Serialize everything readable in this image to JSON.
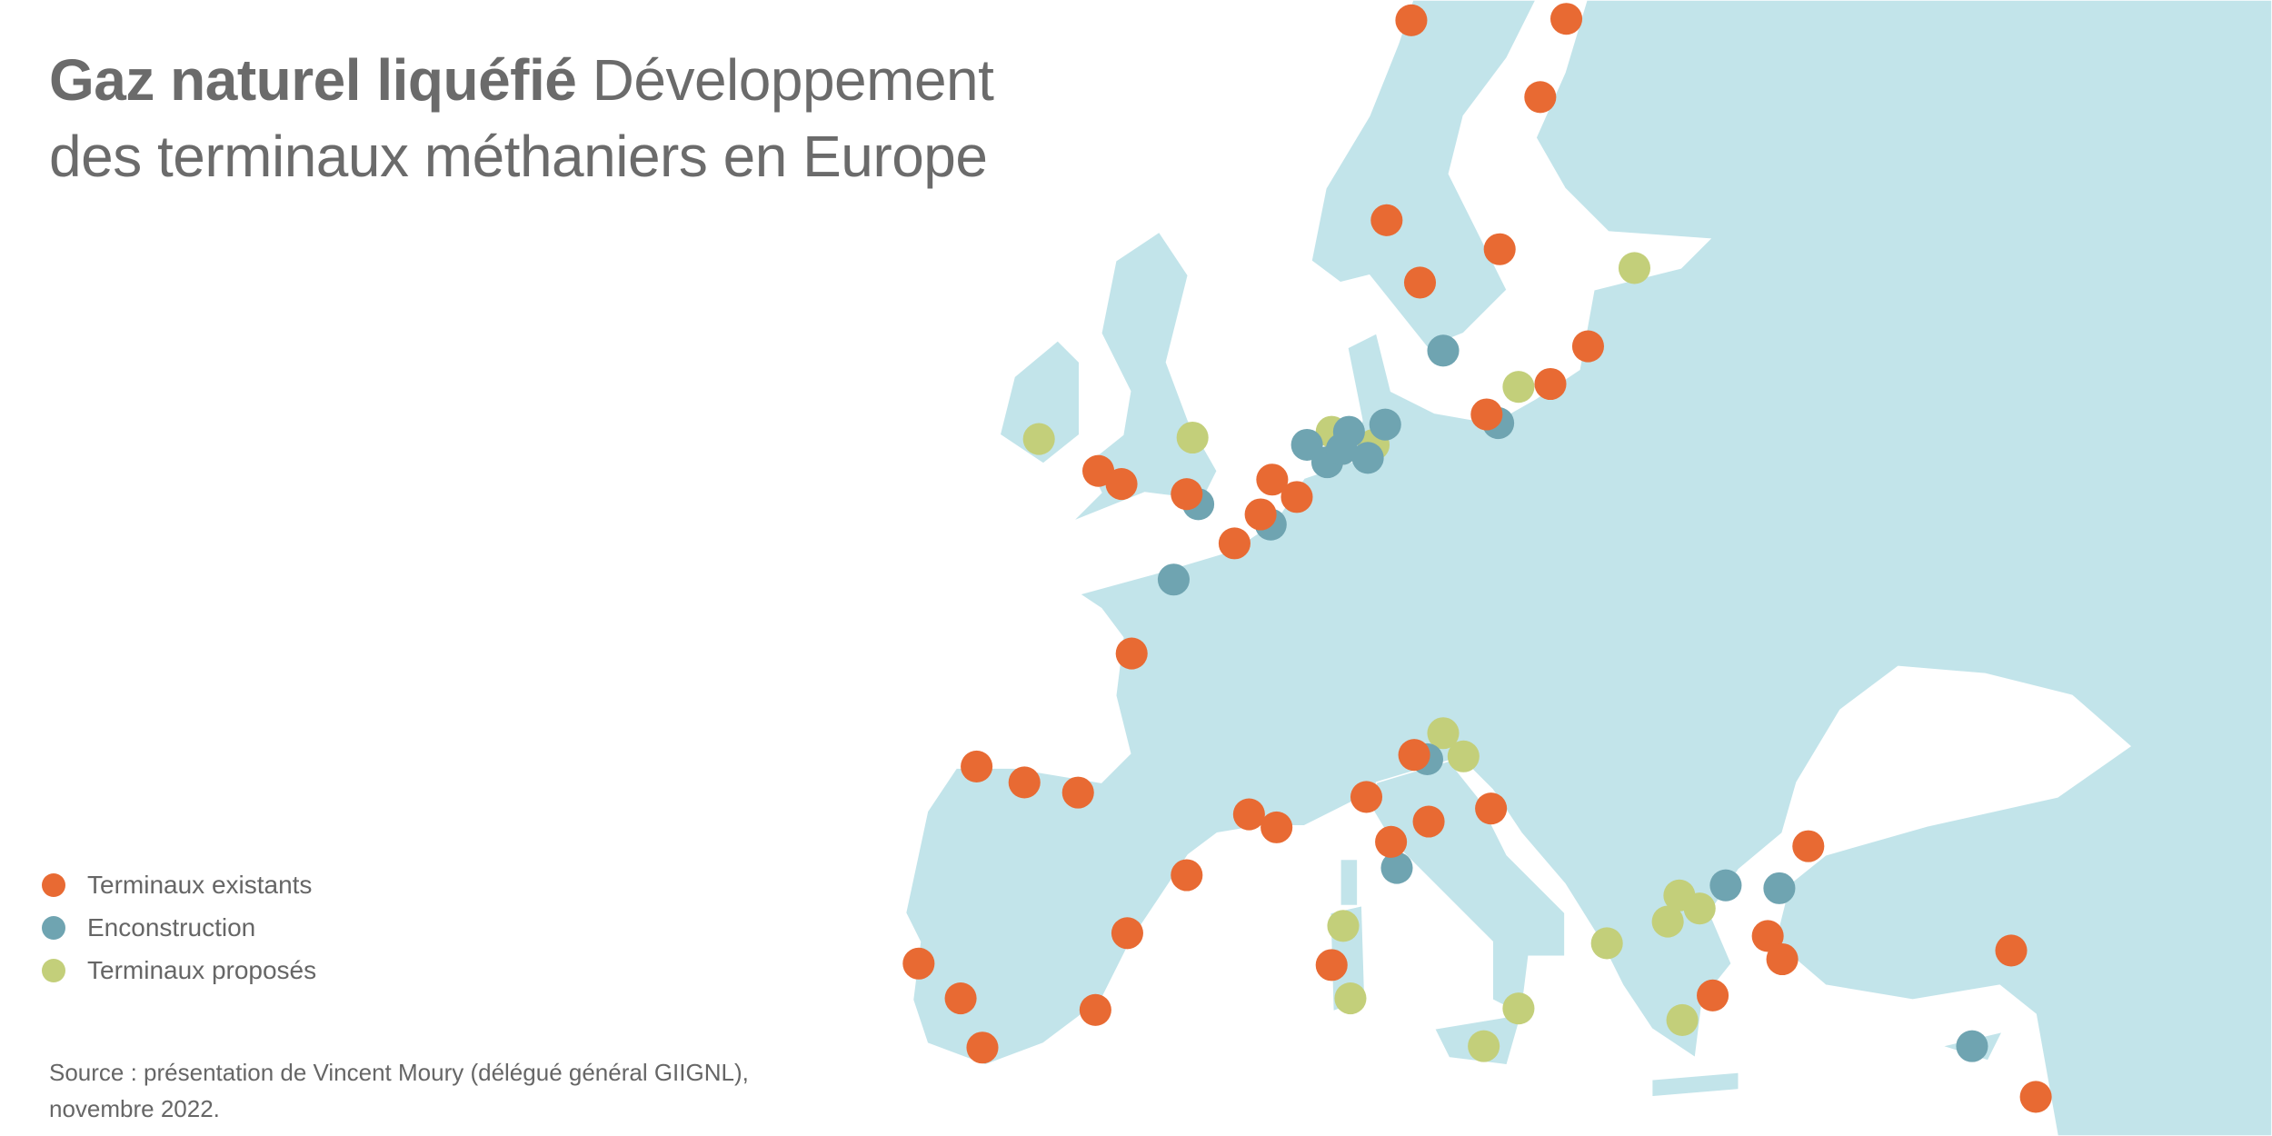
{
  "title": {
    "bold": "Gaz naturel liquéfié",
    "rest_line1": "Développement",
    "line2": "des terminaux méthaniers en Europe"
  },
  "legend": [
    {
      "key": "existing",
      "label": "Terminaux existants",
      "color": "#e86a33"
    },
    {
      "key": "construction",
      "label": "Enconstruction",
      "color": "#6fa4b1"
    },
    {
      "key": "proposed",
      "label": "Terminaux proposés",
      "color": "#c3cf7a"
    }
  ],
  "source": {
    "line1": "Source : présentation de Vincent Moury (délégué général GIIGNL),",
    "line2": "novembre 2022."
  },
  "colors": {
    "land": "#c2e4ea",
    "sea": "#ffffff",
    "text": "#666666"
  }
}
